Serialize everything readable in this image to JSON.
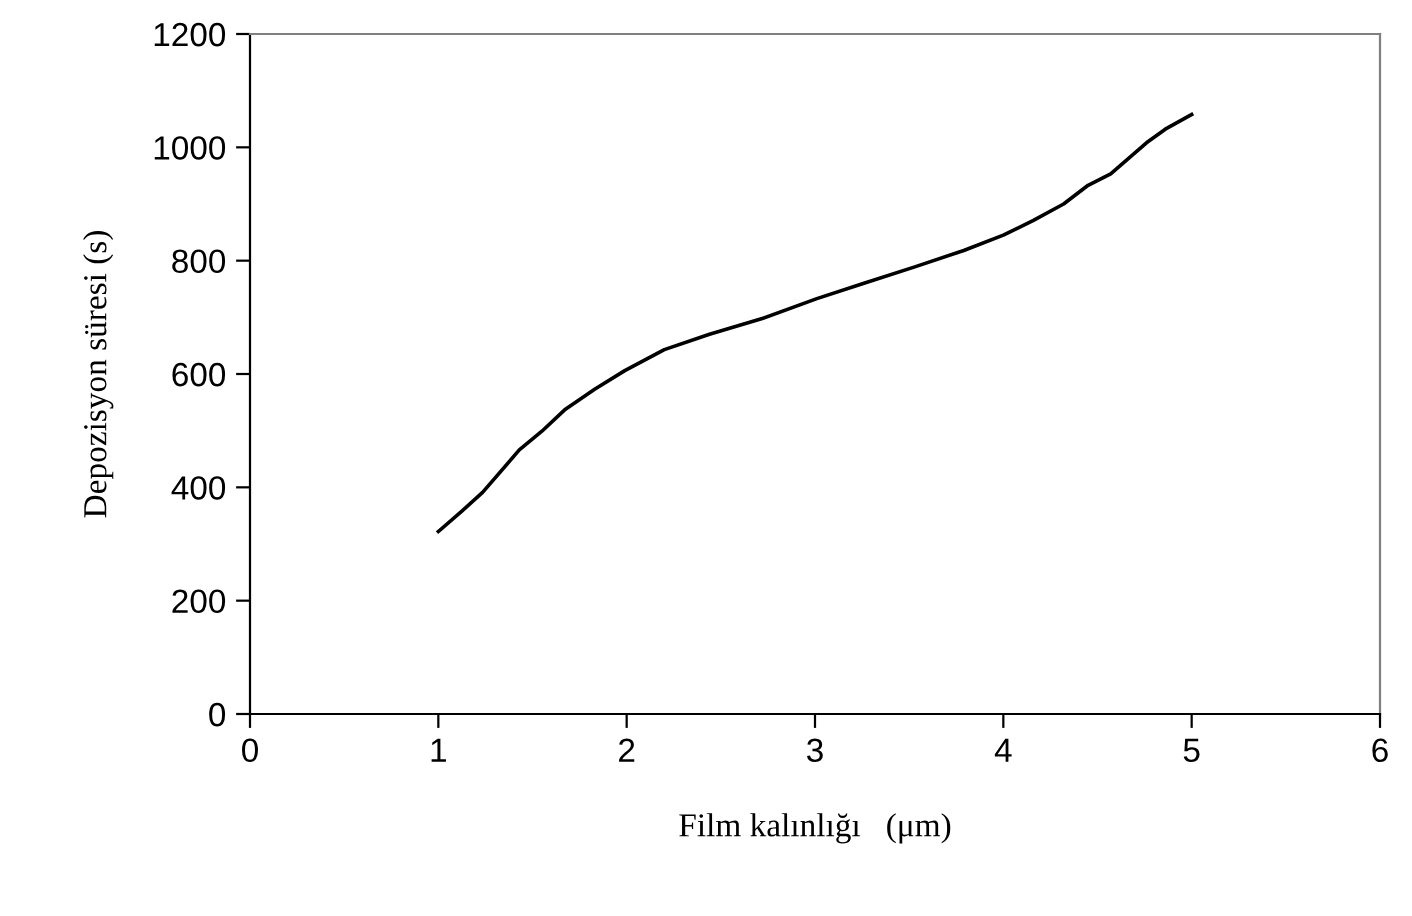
{
  "chart_data": {
    "type": "line",
    "xlabel": "Film kalınlığı   (μm)",
    "ylabel": "Depozisyon süresi (s)",
    "x": [
      1,
      1.125,
      1.235,
      1.43,
      1.55,
      1.675,
      1.83,
      1.99,
      2.2,
      2.44,
      2.72,
      3.01,
      3.26,
      3.53,
      3.79,
      4.0,
      4.16,
      4.32,
      4.45,
      4.57,
      4.76,
      4.86,
      5.0
    ],
    "values": [
      322,
      358,
      391,
      466,
      499,
      538,
      573,
      606,
      643,
      670,
      698,
      733,
      760,
      789,
      818,
      845,
      871,
      900,
      933,
      953,
      1008,
      1032,
      1058
    ],
    "color": "#000000",
    "xlim": [
      0,
      6
    ],
    "xticks": [
      0,
      1,
      2,
      3,
      4,
      5,
      6
    ],
    "ylim": [
      0,
      1200
    ],
    "yticks": [
      0,
      200,
      400,
      600,
      800,
      1000,
      1200
    ],
    "grid": false,
    "legend": false,
    "marker": "none",
    "line_style": "solid"
  }
}
